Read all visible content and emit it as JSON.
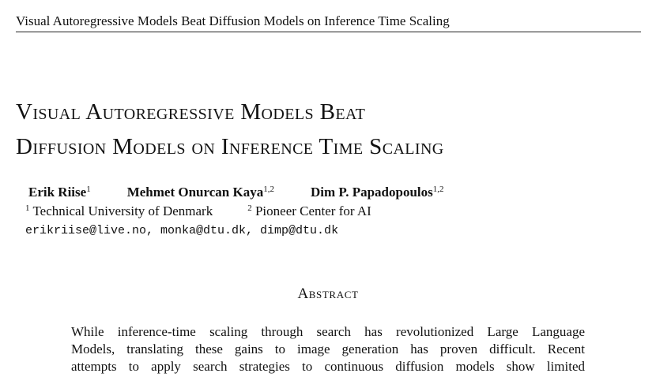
{
  "running_header": "Visual Autoregressive Models Beat Diffusion Models on Inference Time Scaling",
  "title": {
    "lines": [
      "Visual Autoregressive Models Beat",
      "Diffusion Models on Inference Time Scaling"
    ]
  },
  "authors": [
    {
      "name": "Erik Riise",
      "affil": "1"
    },
    {
      "name": "Mehmet Onurcan Kaya",
      "affil": "1,2"
    },
    {
      "name": "Dim P. Papadopoulos",
      "affil": "1,2"
    }
  ],
  "affiliations": [
    {
      "mark": "1",
      "name": "Technical University of Denmark"
    },
    {
      "mark": "2",
      "name": "Pioneer Center for AI"
    }
  ],
  "emails": "erikriise@live.no, monka@dtu.dk, dimp@dtu.dk",
  "abstract": {
    "heading": "Abstract",
    "lines": [
      "While inference-time scaling through search has revolutionized Large Language",
      "Models, translating these gains to image generation has proven difficult. Recent",
      "attempts to apply search strategies to continuous diffusion models show limited"
    ]
  }
}
